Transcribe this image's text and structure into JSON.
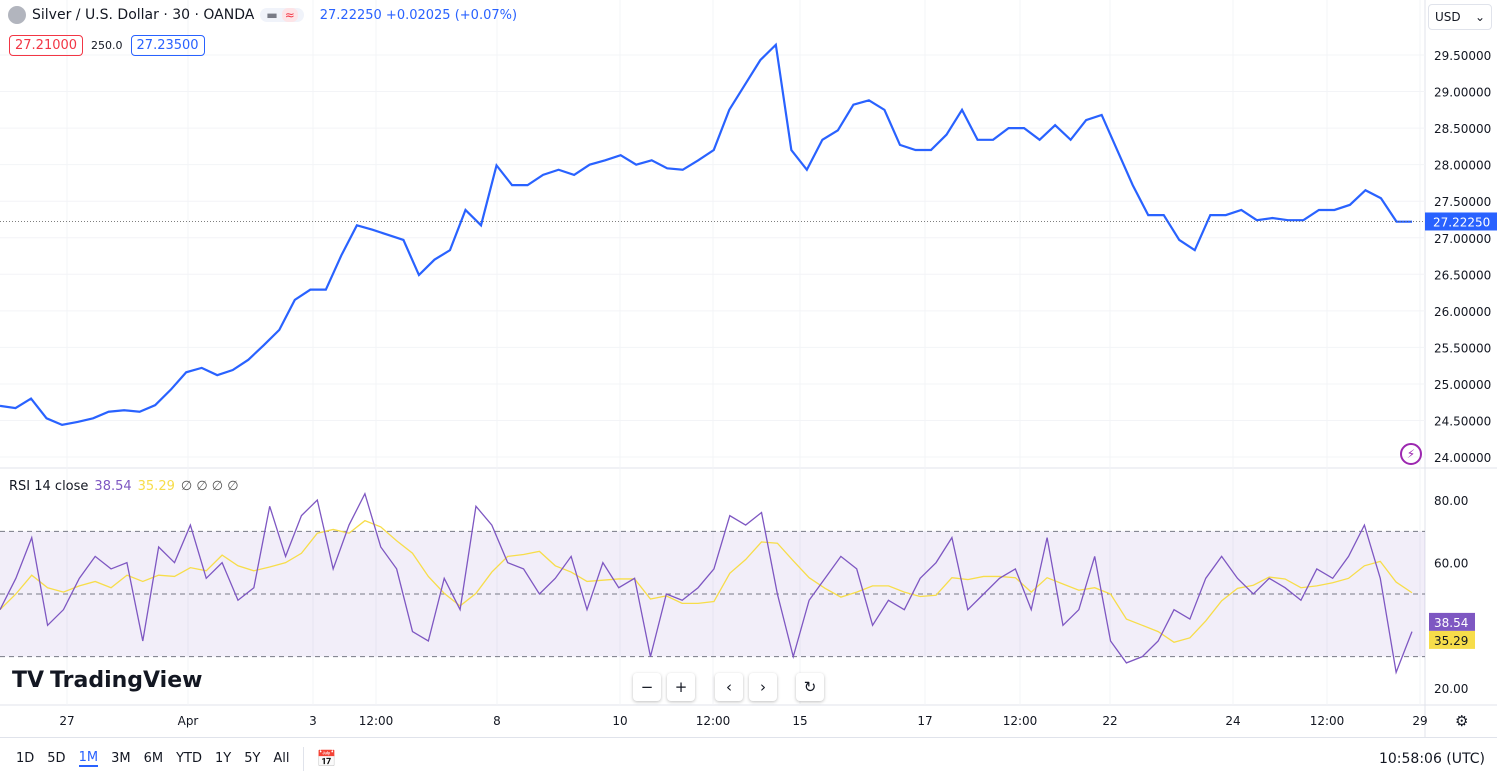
{
  "header": {
    "symbol": "Silver / U.S. Dollar · 30 · OANDA",
    "last": "27.22250",
    "change": "+0.02025 (+0.07%)",
    "bid": "27.21000",
    "spread": "250.0",
    "ask": "27.23500",
    "currency": "USD"
  },
  "rsi_legend": {
    "label": "RSI 14 close",
    "rsi": "38.54",
    "ma": "35.29",
    "na": "∅ ∅ ∅ ∅"
  },
  "logo": "TradingView",
  "ranges": [
    "1D",
    "5D",
    "1M",
    "3M",
    "6M",
    "YTD",
    "1Y",
    "5Y",
    "All"
  ],
  "active_range": "1M",
  "clock": "10:58:06 (UTC)",
  "colors": {
    "price": "#2962ff",
    "rsi": "#7e57c2",
    "rsi_ma": "#f7dd4a",
    "band": "#7e57c2"
  },
  "chart_data": [
    {
      "type": "line",
      "title": "",
      "ylim": [
        24.0,
        29.75
      ],
      "yticks": [
        "29.50000",
        "29.00000",
        "28.50000",
        "28.00000",
        "27.50000",
        "27.00000",
        "26.50000",
        "26.00000",
        "25.50000",
        "25.00000",
        "24.50000",
        "24.00000"
      ],
      "xticks": [
        "27",
        "Apr",
        "3",
        "12:00",
        "8",
        "10",
        "12:00",
        "15",
        "17",
        "12:00",
        "22",
        "24",
        "12:00",
        "29"
      ],
      "last_label": "27.22250",
      "series": [
        {
          "values": [
            24.7,
            24.67,
            24.8,
            24.53,
            24.44,
            24.48,
            24.53,
            24.62,
            24.64,
            24.62,
            24.71,
            24.92,
            25.16,
            25.22,
            25.12,
            25.19,
            25.33,
            25.53,
            25.74,
            26.15,
            26.29,
            26.29,
            26.76,
            27.17,
            27.11,
            27.04,
            26.97,
            26.49,
            26.7,
            26.83,
            27.38,
            27.17,
            27.99,
            27.72,
            27.72,
            27.86,
            27.93,
            27.86,
            28.0,
            28.06,
            28.13,
            28.0,
            28.06,
            27.95,
            27.93,
            28.06,
            28.2,
            28.75,
            29.09,
            29.43,
            29.64,
            28.2,
            27.93,
            28.34,
            28.47,
            28.82,
            28.88,
            28.75,
            28.27,
            28.2,
            28.2,
            28.41,
            28.75,
            28.34,
            28.34,
            28.5,
            28.5,
            28.34,
            28.54,
            28.34,
            28.61,
            28.68,
            28.2,
            27.72,
            27.31,
            27.31,
            26.97,
            26.83,
            27.31,
            27.31,
            27.38,
            27.24,
            27.27,
            27.24,
            27.24,
            27.38,
            27.38,
            27.45,
            27.65,
            27.54,
            27.22,
            27.22
          ]
        }
      ]
    },
    {
      "type": "line",
      "title": "RSI",
      "ylim": [
        15,
        90
      ],
      "yticks": [
        "80.00",
        "60.00",
        "20.00"
      ],
      "bands": [
        30,
        50,
        70
      ],
      "series": [
        {
          "name": "RSI",
          "values": [
            45,
            55,
            68,
            40,
            45,
            55,
            62,
            58,
            60,
            35,
            65,
            60,
            72,
            55,
            60,
            48,
            52,
            78,
            62,
            75,
            80,
            58,
            72,
            82,
            65,
            58,
            38,
            35,
            55,
            45,
            78,
            72,
            60,
            58,
            50,
            55,
            62,
            45,
            60,
            52,
            55,
            30,
            50,
            48,
            52,
            58,
            75,
            72,
            76,
            50,
            30,
            48,
            55,
            62,
            58,
            40,
            48,
            45,
            55,
            60,
            68,
            45,
            50,
            55,
            58,
            45,
            68,
            40,
            45,
            62,
            35,
            28,
            30,
            35,
            45,
            42,
            55,
            62,
            55,
            50,
            55,
            52,
            48,
            58,
            55,
            62,
            72,
            55,
            25,
            38
          ],
          "last_label": "38.54"
        },
        {
          "name": "MA",
          "last_label": "35.29"
        }
      ]
    }
  ]
}
